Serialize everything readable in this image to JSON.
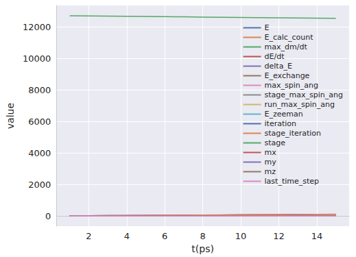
{
  "chart_data": {
    "type": "line",
    "x_label": "t(ps)",
    "y_label": "value",
    "x": [
      1,
      2,
      3,
      4,
      5,
      6,
      7,
      8,
      9,
      10,
      11,
      12,
      13,
      14,
      15
    ],
    "xlim": [
      0.3,
      15.7
    ],
    "xticks": [
      2,
      4,
      6,
      8,
      10,
      12,
      14
    ],
    "ylim": [
      -650,
      13350
    ],
    "yticks": [
      0,
      2000,
      4000,
      6000,
      8000,
      10000,
      12000
    ],
    "grid": true,
    "legend": "upper right",
    "series": [
      {
        "name": "E",
        "color": "#4C72B0",
        "values": [
          0,
          0,
          0,
          0,
          0,
          0,
          0,
          0,
          0,
          0,
          0,
          0,
          0,
          0,
          0
        ]
      },
      {
        "name": "E_calc_count",
        "color": "#DD8452",
        "values": [
          15,
          22,
          29,
          36,
          43,
          50,
          57,
          64,
          71,
          78,
          85,
          92,
          99,
          106,
          113
        ]
      },
      {
        "name": "max_dm/dt",
        "color": "#55A868",
        "values": [
          12700,
          12688,
          12676,
          12664,
          12652,
          12640,
          12628,
          12616,
          12604,
          12592,
          12580,
          12568,
          12556,
          12544,
          12532
        ]
      },
      {
        "name": "dE/dt",
        "color": "#C44E52",
        "values": [
          0,
          0,
          0,
          0,
          0,
          0,
          0,
          0,
          0,
          0,
          0,
          0,
          0,
          0,
          0
        ]
      },
      {
        "name": "delta_E",
        "color": "#8172B3",
        "values": [
          0,
          0,
          0,
          0,
          0,
          0,
          0,
          0,
          0,
          0,
          0,
          0,
          0,
          0,
          0
        ]
      },
      {
        "name": "E_exchange",
        "color": "#937860",
        "values": [
          0,
          0,
          0,
          0,
          0,
          0,
          0,
          0,
          0,
          0,
          0,
          0,
          0,
          0,
          0
        ]
      },
      {
        "name": "max_spin_ang",
        "color": "#DA8BC3",
        "values": [
          1,
          1,
          1,
          1,
          1,
          1,
          1,
          1,
          1,
          1,
          1,
          1,
          1,
          1,
          1
        ]
      },
      {
        "name": "stage_max_spin_ang",
        "color": "#8C8C8C",
        "values": [
          1,
          1,
          1,
          1,
          1,
          1,
          1,
          1,
          1,
          1,
          1,
          1,
          1,
          1,
          1
        ]
      },
      {
        "name": "run_max_spin_ang",
        "color": "#CCB974",
        "values": [
          1,
          1,
          1,
          1,
          1,
          1,
          1,
          1,
          1,
          1,
          1,
          1,
          1,
          1,
          1
        ]
      },
      {
        "name": "E_zeeman",
        "color": "#64B5CD",
        "values": [
          0,
          0,
          0,
          0,
          0,
          0,
          0,
          0,
          0,
          0,
          0,
          0,
          0,
          0,
          0
        ]
      },
      {
        "name": "iteration",
        "color": "#4C72B0",
        "values": [
          10,
          17,
          24,
          31,
          38,
          45,
          52,
          59,
          66,
          73,
          80,
          87,
          94,
          101,
          108
        ]
      },
      {
        "name": "stage_iteration",
        "color": "#DD8452",
        "values": [
          10,
          17,
          24,
          31,
          38,
          45,
          52,
          59,
          66,
          73,
          80,
          87,
          94,
          101,
          108
        ]
      },
      {
        "name": "stage",
        "color": "#55A868",
        "values": [
          0,
          0,
          0,
          0,
          0,
          0,
          0,
          0,
          0,
          0,
          0,
          0,
          0,
          0,
          0
        ]
      },
      {
        "name": "mx",
        "color": "#C44E52",
        "values": [
          1,
          1,
          1,
          1,
          1,
          1,
          1,
          1,
          1,
          1,
          1,
          1,
          1,
          1,
          1
        ]
      },
      {
        "name": "my",
        "color": "#8172B3",
        "values": [
          0,
          0,
          0,
          0,
          0,
          0,
          0,
          0,
          0,
          0,
          0,
          0,
          0,
          0,
          0
        ]
      },
      {
        "name": "mz",
        "color": "#937860",
        "values": [
          0,
          0,
          0,
          0,
          0,
          0,
          0,
          0,
          0,
          0,
          0,
          0,
          0,
          0,
          0
        ]
      },
      {
        "name": "last_time_step",
        "color": "#DA8BC3",
        "values": [
          0,
          0,
          0,
          0,
          0,
          0,
          0,
          0,
          0,
          0,
          0,
          0,
          0,
          0,
          0
        ]
      }
    ]
  }
}
